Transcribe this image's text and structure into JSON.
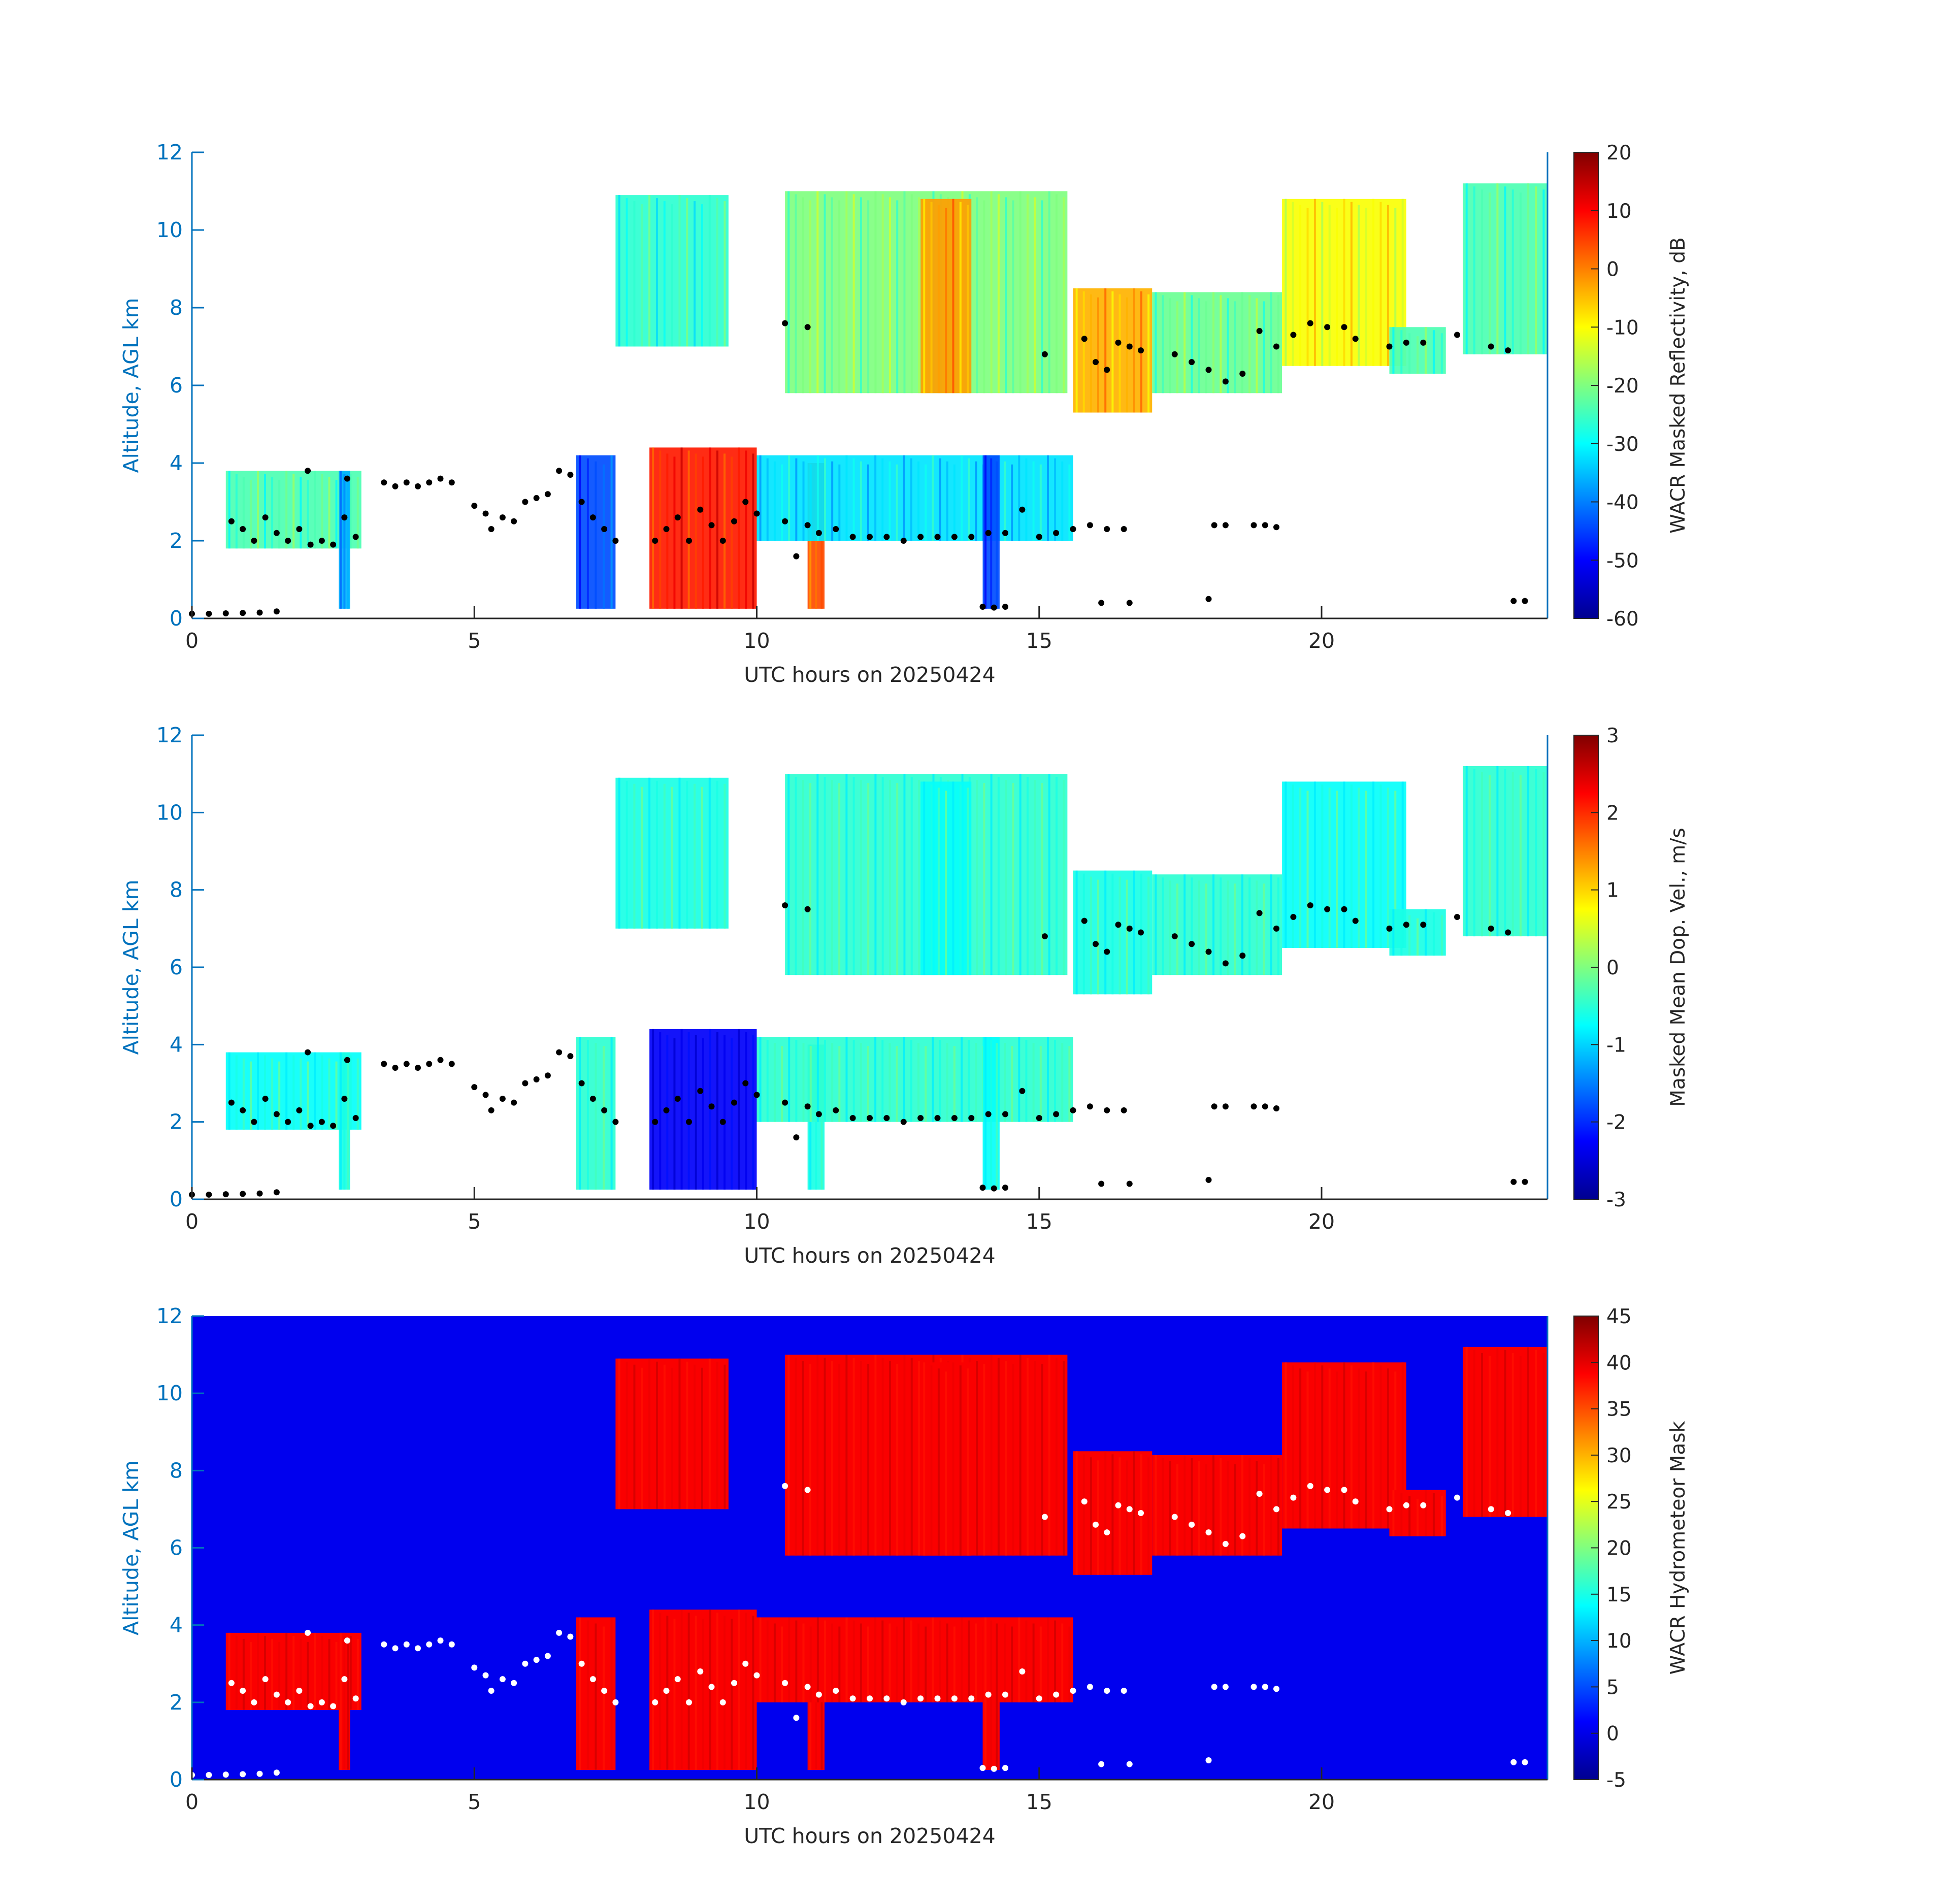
{
  "chart_data": [
    {
      "type": "heatmap",
      "panel": "reflectivity",
      "xlabel": "UTC hours on 20250424",
      "ylabel": "Altitude, AGL km",
      "xlim": [
        0,
        24
      ],
      "ylim": [
        0,
        12
      ],
      "xticks": [
        0,
        5,
        10,
        15,
        20
      ],
      "yticks": [
        0,
        2,
        4,
        6,
        8,
        10,
        12
      ],
      "grid": false,
      "colormap": "jet",
      "background": "#ffffff",
      "colorbar": {
        "label": "WACR Masked Reflectivity, dB",
        "range": [
          -60,
          20
        ],
        "ticks": [
          -60,
          -50,
          -40,
          -30,
          -20,
          -10,
          0,
          10,
          20
        ]
      },
      "dot_color": "#000000"
    },
    {
      "type": "heatmap",
      "panel": "doppler_velocity",
      "xlabel": "UTC hours on 20250424",
      "ylabel": "Altitude, AGL km",
      "xlim": [
        0,
        24
      ],
      "ylim": [
        0,
        12
      ],
      "xticks": [
        0,
        5,
        10,
        15,
        20
      ],
      "yticks": [
        0,
        2,
        4,
        6,
        8,
        10,
        12
      ],
      "grid": false,
      "colormap": "jet",
      "background": "#ffffff",
      "colorbar": {
        "label": "Masked Mean Dop. Vel., m/s",
        "range": [
          -3,
          3
        ],
        "ticks": [
          -3,
          -2,
          -1,
          0,
          1,
          2,
          3
        ]
      },
      "dot_color": "#000000"
    },
    {
      "type": "heatmap",
      "panel": "hydrometeor_mask",
      "xlabel": "UTC hours on 20250424",
      "ylabel": "Altitude, AGL km",
      "xlim": [
        0,
        24
      ],
      "ylim": [
        0,
        12
      ],
      "xticks": [
        0,
        5,
        10,
        15,
        20
      ],
      "yticks": [
        0,
        2,
        4,
        6,
        8,
        10,
        12
      ],
      "grid": false,
      "colormap": "jet",
      "background": "#0000ee",
      "colorbar": {
        "label": "WACR Hydrometeor Mask",
        "range": [
          -5,
          45
        ],
        "ticks": [
          -5,
          0,
          5,
          10,
          15,
          20,
          25,
          30,
          35,
          40,
          45
        ]
      },
      "dot_color": "#ffffff"
    }
  ],
  "cloud_regions": [
    {
      "x0": 0.6,
      "x1": 3.0,
      "y0": 1.8,
      "y1": 3.8,
      "v": 0.45
    },
    {
      "x0": 2.6,
      "x1": 2.8,
      "y0": 0.25,
      "y1": 3.8,
      "v": 0.3
    },
    {
      "x0": 6.8,
      "x1": 7.5,
      "y0": 0.25,
      "y1": 4.2,
      "v": 0.2
    },
    {
      "x0": 8.1,
      "x1": 10.0,
      "y0": 0.25,
      "y1": 4.4,
      "v": 0.85
    },
    {
      "x0": 10.9,
      "x1": 11.2,
      "y0": 0.25,
      "y1": 4.0,
      "v": 0.8
    },
    {
      "x0": 10.0,
      "x1": 15.6,
      "y0": 2.0,
      "y1": 4.2,
      "v": 0.35
    },
    {
      "x0": 14.0,
      "x1": 14.3,
      "y0": 0.25,
      "y1": 4.2,
      "v": 0.2
    },
    {
      "x0": 7.5,
      "x1": 9.5,
      "y0": 7.0,
      "y1": 10.9,
      "v": 0.42
    },
    {
      "x0": 10.5,
      "x1": 15.5,
      "y0": 5.8,
      "y1": 11.0,
      "v": 0.5
    },
    {
      "x0": 12.9,
      "x1": 13.8,
      "y0": 5.8,
      "y1": 10.8,
      "v": 0.72
    },
    {
      "x0": 15.6,
      "x1": 17.0,
      "y0": 5.3,
      "y1": 8.5,
      "v": 0.7
    },
    {
      "x0": 17.0,
      "x1": 19.3,
      "y0": 5.8,
      "y1": 8.4,
      "v": 0.48
    },
    {
      "x0": 19.3,
      "x1": 21.5,
      "y0": 6.5,
      "y1": 10.8,
      "v": 0.62
    },
    {
      "x0": 21.2,
      "x1": 22.2,
      "y0": 6.3,
      "y1": 7.5,
      "v": 0.45
    },
    {
      "x0": 22.5,
      "x1": 24.0,
      "y0": 6.8,
      "y1": 11.2,
      "v": 0.45
    }
  ],
  "cloud_base_points": [
    [
      0.0,
      0.12
    ],
    [
      0.3,
      0.12
    ],
    [
      0.6,
      0.13
    ],
    [
      0.9,
      0.14
    ],
    [
      1.2,
      0.15
    ],
    [
      1.5,
      0.18
    ],
    [
      0.7,
      2.5
    ],
    [
      0.9,
      2.3
    ],
    [
      1.1,
      2.0
    ],
    [
      1.3,
      2.6
    ],
    [
      1.5,
      2.2
    ],
    [
      1.7,
      2.0
    ],
    [
      1.9,
      2.3
    ],
    [
      2.1,
      1.9
    ],
    [
      2.3,
      2.0
    ],
    [
      2.5,
      1.9
    ],
    [
      2.7,
      2.6
    ],
    [
      2.9,
      2.1
    ],
    [
      2.75,
      3.6
    ],
    [
      2.05,
      3.8
    ],
    [
      3.4,
      3.5
    ],
    [
      3.6,
      3.4
    ],
    [
      3.8,
      3.5
    ],
    [
      4.0,
      3.4
    ],
    [
      4.2,
      3.5
    ],
    [
      4.4,
      3.6
    ],
    [
      4.6,
      3.5
    ],
    [
      5.0,
      2.9
    ],
    [
      5.2,
      2.7
    ],
    [
      5.3,
      2.3
    ],
    [
      5.5,
      2.6
    ],
    [
      5.7,
      2.5
    ],
    [
      5.9,
      3.0
    ],
    [
      6.1,
      3.1
    ],
    [
      6.3,
      3.2
    ],
    [
      6.5,
      3.8
    ],
    [
      6.7,
      3.7
    ],
    [
      6.9,
      3.0
    ],
    [
      7.1,
      2.6
    ],
    [
      7.3,
      2.3
    ],
    [
      7.5,
      2.0
    ],
    [
      8.2,
      2.0
    ],
    [
      8.4,
      2.3
    ],
    [
      8.6,
      2.6
    ],
    [
      8.8,
      2.0
    ],
    [
      9.0,
      2.8
    ],
    [
      9.2,
      2.4
    ],
    [
      9.4,
      2.0
    ],
    [
      9.6,
      2.5
    ],
    [
      9.8,
      3.0
    ],
    [
      10.0,
      2.7
    ],
    [
      10.5,
      2.5
    ],
    [
      10.7,
      1.6
    ],
    [
      10.9,
      2.4
    ],
    [
      11.1,
      2.2
    ],
    [
      11.4,
      2.3
    ],
    [
      11.7,
      2.1
    ],
    [
      12.0,
      2.1
    ],
    [
      12.3,
      2.1
    ],
    [
      12.6,
      2.0
    ],
    [
      12.9,
      2.1
    ],
    [
      13.2,
      2.1
    ],
    [
      13.5,
      2.1
    ],
    [
      13.8,
      2.1
    ],
    [
      14.1,
      2.2
    ],
    [
      14.4,
      2.2
    ],
    [
      14.7,
      2.8
    ],
    [
      15.0,
      2.1
    ],
    [
      15.3,
      2.2
    ],
    [
      15.6,
      2.3
    ],
    [
      15.9,
      2.4
    ],
    [
      16.2,
      2.3
    ],
    [
      16.5,
      2.3
    ],
    [
      14.0,
      0.3
    ],
    [
      14.2,
      0.28
    ],
    [
      14.4,
      0.3
    ],
    [
      16.1,
      0.4
    ],
    [
      16.6,
      0.4
    ],
    [
      18.0,
      0.5
    ],
    [
      23.4,
      0.45
    ],
    [
      23.6,
      0.45
    ],
    [
      18.1,
      2.4
    ],
    [
      18.3,
      2.4
    ],
    [
      18.8,
      2.4
    ],
    [
      19.0,
      2.4
    ],
    [
      19.2,
      2.35
    ],
    [
      10.5,
      7.6
    ],
    [
      10.9,
      7.5
    ],
    [
      15.1,
      6.8
    ],
    [
      15.8,
      7.2
    ],
    [
      16.0,
      6.6
    ],
    [
      16.2,
      6.4
    ],
    [
      16.4,
      7.1
    ],
    [
      16.6,
      7.0
    ],
    [
      16.8,
      6.9
    ],
    [
      17.4,
      6.8
    ],
    [
      17.7,
      6.6
    ],
    [
      18.0,
      6.4
    ],
    [
      18.3,
      6.1
    ],
    [
      18.6,
      6.3
    ],
    [
      18.9,
      7.4
    ],
    [
      19.2,
      7.0
    ],
    [
      19.5,
      7.3
    ],
    [
      19.8,
      7.6
    ],
    [
      20.1,
      7.5
    ],
    [
      20.4,
      7.5
    ],
    [
      20.6,
      7.2
    ],
    [
      21.2,
      7.0
    ],
    [
      21.5,
      7.1
    ],
    [
      21.8,
      7.1
    ],
    [
      22.4,
      7.3
    ],
    [
      23.0,
      7.0
    ],
    [
      23.3,
      6.9
    ]
  ]
}
